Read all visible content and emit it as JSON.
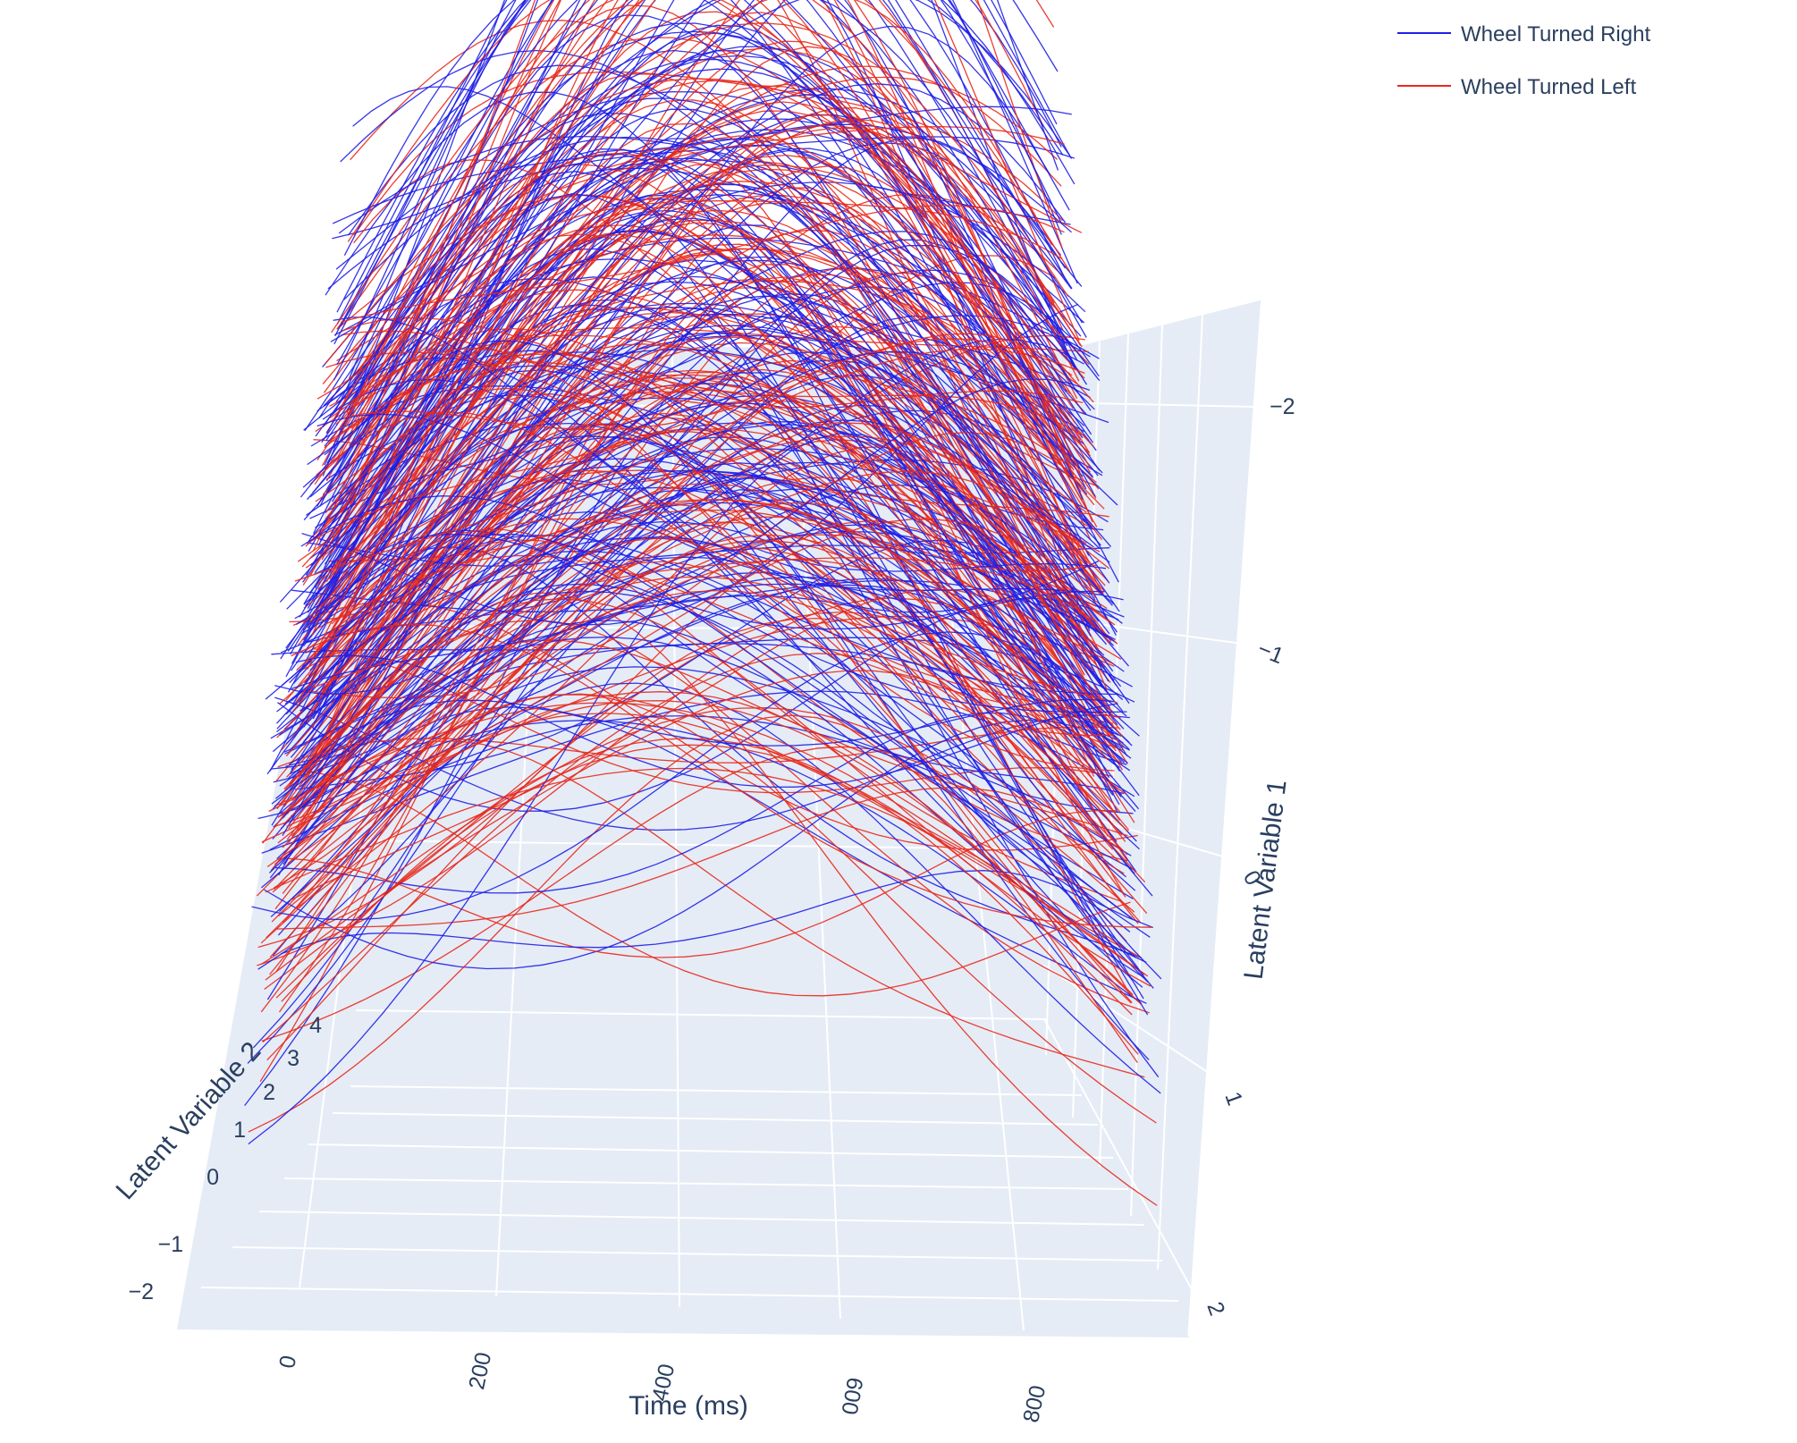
{
  "chart_data": {
    "type": "line",
    "dimensions": 3,
    "x_axis": {
      "label": "Time (ms)",
      "ticks": [
        0,
        200,
        400,
        600,
        800
      ],
      "range": [
        -100,
        960
      ]
    },
    "y_axis": {
      "label": "Latent Variable 2",
      "ticks": [
        -2,
        -1,
        0,
        1,
        2,
        3,
        4
      ],
      "range": [
        -2.5,
        4.2
      ]
    },
    "z_axis": {
      "label": "Latent Variable 1",
      "ticks": [
        -2,
        -1,
        0,
        1,
        2
      ],
      "range": [
        2.2,
        -2.4
      ]
    },
    "legend_placement": "top-right",
    "series": [
      {
        "name": "Wheel Turned Right",
        "color": "#1f1fe6",
        "approx_trial_count": 220
      },
      {
        "name": "Wheel Turned Left",
        "color": "#e8291c",
        "approx_trial_count": 200
      }
    ],
    "tick_labels": {
      "x": [
        "0",
        "200",
        "400",
        "600",
        "800"
      ],
      "y": [
        "−2",
        "−1",
        "0",
        "1",
        "2",
        "3",
        "4"
      ],
      "z": [
        "−2",
        "−1",
        "0",
        "1",
        "2"
      ]
    }
  }
}
